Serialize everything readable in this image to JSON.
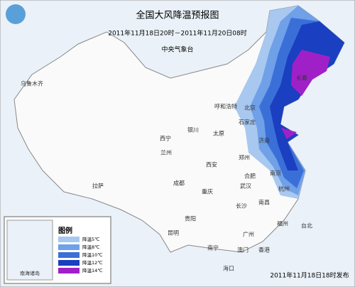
{
  "header": {
    "title": "全国大风降温预报图",
    "period": "2011年11月18日20时－2011年11月20日08时",
    "agency": "中央气象台"
  },
  "cities": [
    "乌鲁木齐",
    "呼和浩特",
    "北京",
    "长春",
    "石家庄",
    "太原",
    "济南",
    "银川",
    "西宁",
    "兰州",
    "西安",
    "郑州",
    "合肥",
    "南京",
    "杭州",
    "武汉",
    "成都",
    "重庆",
    "拉萨",
    "贵阳",
    "长沙",
    "南昌",
    "福州",
    "昆明",
    "南宁",
    "广州",
    "香港",
    "澳门",
    "海口",
    "台北"
  ],
  "legend": {
    "title": "图例",
    "items": [
      "降温5℃",
      "降温8℃",
      "降温10℃",
      "降温12℃",
      "降温14℃"
    ]
  },
  "inset_label": "南海诸岛",
  "footer": "2011年11月18日18时发布"
}
